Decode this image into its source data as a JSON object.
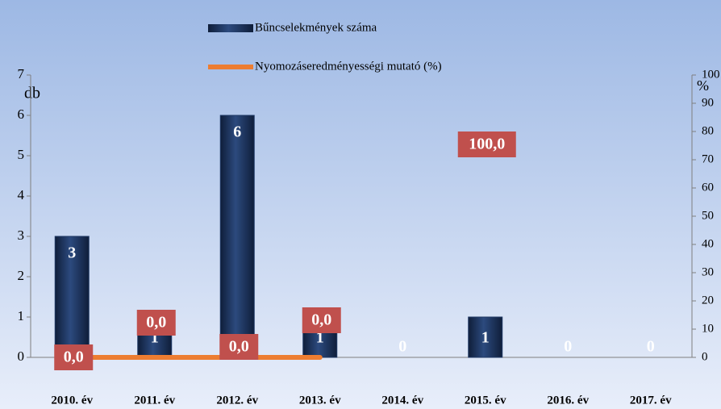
{
  "chart_data": {
    "type": "bar",
    "categories": [
      "2010. év",
      "2011. év",
      "2012. év",
      "2013. év",
      "2014. év",
      "2015. év",
      "2016. év",
      "2017. év"
    ],
    "series": [
      {
        "name": "Bűncselekmények száma",
        "type": "bar",
        "color": "#1f3864",
        "values": [
          3,
          1,
          6,
          1,
          0,
          1,
          0,
          0
        ]
      },
      {
        "name": "Nyomozáseredményességi mutató (%)",
        "type": "line",
        "axis": "y2",
        "color": "#ed7d31",
        "label_color": "#c0504d",
        "values": [
          0,
          0,
          0,
          0,
          null,
          100,
          null,
          null
        ],
        "value_labels": [
          "0,0",
          "0,0",
          "0,0",
          "0,0",
          null,
          "100,0",
          null,
          null
        ]
      }
    ],
    "ylabel": "db",
    "y2label": "%",
    "ylim": [
      0,
      7
    ],
    "yticks": [
      0,
      1,
      2,
      3,
      4,
      5,
      6,
      7
    ],
    "y2lim": [
      0,
      100
    ],
    "y2ticks": [
      0,
      10,
      20,
      30,
      40,
      50,
      60,
      70,
      80,
      90,
      100
    ],
    "legend": "top"
  }
}
